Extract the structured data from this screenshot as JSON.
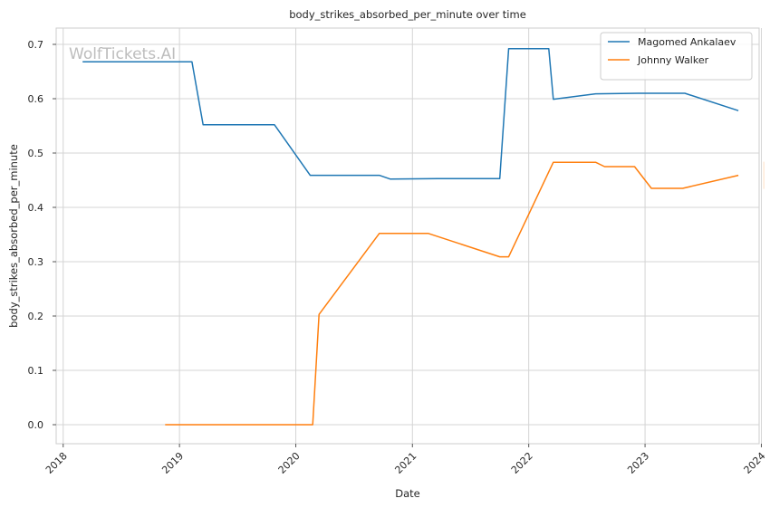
{
  "chart_data": {
    "type": "line",
    "title": "body_strikes_absorbed_per_minute over time",
    "xlabel": "Date",
    "ylabel": "body_strikes_absorbed_per_minute",
    "watermark": "WolfTickets.AI",
    "x_range": [
      "2017-12-10",
      "2023-12-25"
    ],
    "ylim": [
      -0.035,
      0.73
    ],
    "x_ticks": [
      {
        "date": "2018-01-01",
        "label": "2018"
      },
      {
        "date": "2019-01-01",
        "label": "2019"
      },
      {
        "date": "2020-01-01",
        "label": "2020"
      },
      {
        "date": "2021-01-01",
        "label": "2021"
      },
      {
        "date": "2022-01-01",
        "label": "2022"
      },
      {
        "date": "2023-01-01",
        "label": "2023"
      },
      {
        "date": "2024-01-01",
        "label": "2024"
      }
    ],
    "y_ticks": [
      {
        "value": 0.0,
        "label": "0.0"
      },
      {
        "value": 0.1,
        "label": "0.1"
      },
      {
        "value": 0.2,
        "label": "0.2"
      },
      {
        "value": 0.3,
        "label": "0.3"
      },
      {
        "value": 0.4,
        "label": "0.4"
      },
      {
        "value": 0.5,
        "label": "0.5"
      },
      {
        "value": 0.6,
        "label": "0.6"
      },
      {
        "value": 0.7,
        "label": "0.7"
      }
    ],
    "grid": true,
    "legend_position": "top-right",
    "series": [
      {
        "name": "Magomed Ankalaev",
        "color": "#1f77b4",
        "points": [
          {
            "x": "2018-03-03",
            "y": 0.668
          },
          {
            "x": "2019-02-09",
            "y": 0.668
          },
          {
            "x": "2019-03-16",
            "y": 0.552
          },
          {
            "x": "2019-10-26",
            "y": 0.552
          },
          {
            "x": "2020-02-15",
            "y": 0.459
          },
          {
            "x": "2020-09-19",
            "y": 0.459
          },
          {
            "x": "2020-10-24",
            "y": 0.452
          },
          {
            "x": "2021-03-20",
            "y": 0.453
          },
          {
            "x": "2021-10-02",
            "y": 0.453
          },
          {
            "x": "2021-10-30",
            "y": 0.692
          },
          {
            "x": "2022-03-05",
            "y": 0.692
          },
          {
            "x": "2022-03-19",
            "y": 0.599
          },
          {
            "x": "2022-07-30",
            "y": 0.609
          },
          {
            "x": "2022-12-10",
            "y": 0.61
          },
          {
            "x": "2023-05-06",
            "y": 0.61
          },
          {
            "x": "2023-10-21",
            "y": 0.578
          }
        ]
      },
      {
        "name": "Johnny Walker",
        "color": "#ff7f0e",
        "points": [
          {
            "x": "2018-11-17",
            "y": 0.0
          },
          {
            "x": "2020-02-23",
            "y": 0.0
          },
          {
            "x": "2020-03-14",
            "y": 0.203
          },
          {
            "x": "2020-09-19",
            "y": 0.352
          },
          {
            "x": "2021-02-20",
            "y": 0.352
          },
          {
            "x": "2021-10-02",
            "y": 0.309
          },
          {
            "x": "2021-10-30",
            "y": 0.309
          },
          {
            "x": "2022-03-19",
            "y": 0.483
          },
          {
            "x": "2022-07-30",
            "y": 0.483
          },
          {
            "x": "2022-08-27",
            "y": 0.475
          },
          {
            "x": "2022-11-29",
            "y": 0.475
          },
          {
            "x": "2023-01-21",
            "y": 0.435
          },
          {
            "x": "2023-04-29",
            "y": 0.435
          },
          {
            "x": "2023-10-21",
            "y": 0.459
          }
        ]
      }
    ]
  }
}
